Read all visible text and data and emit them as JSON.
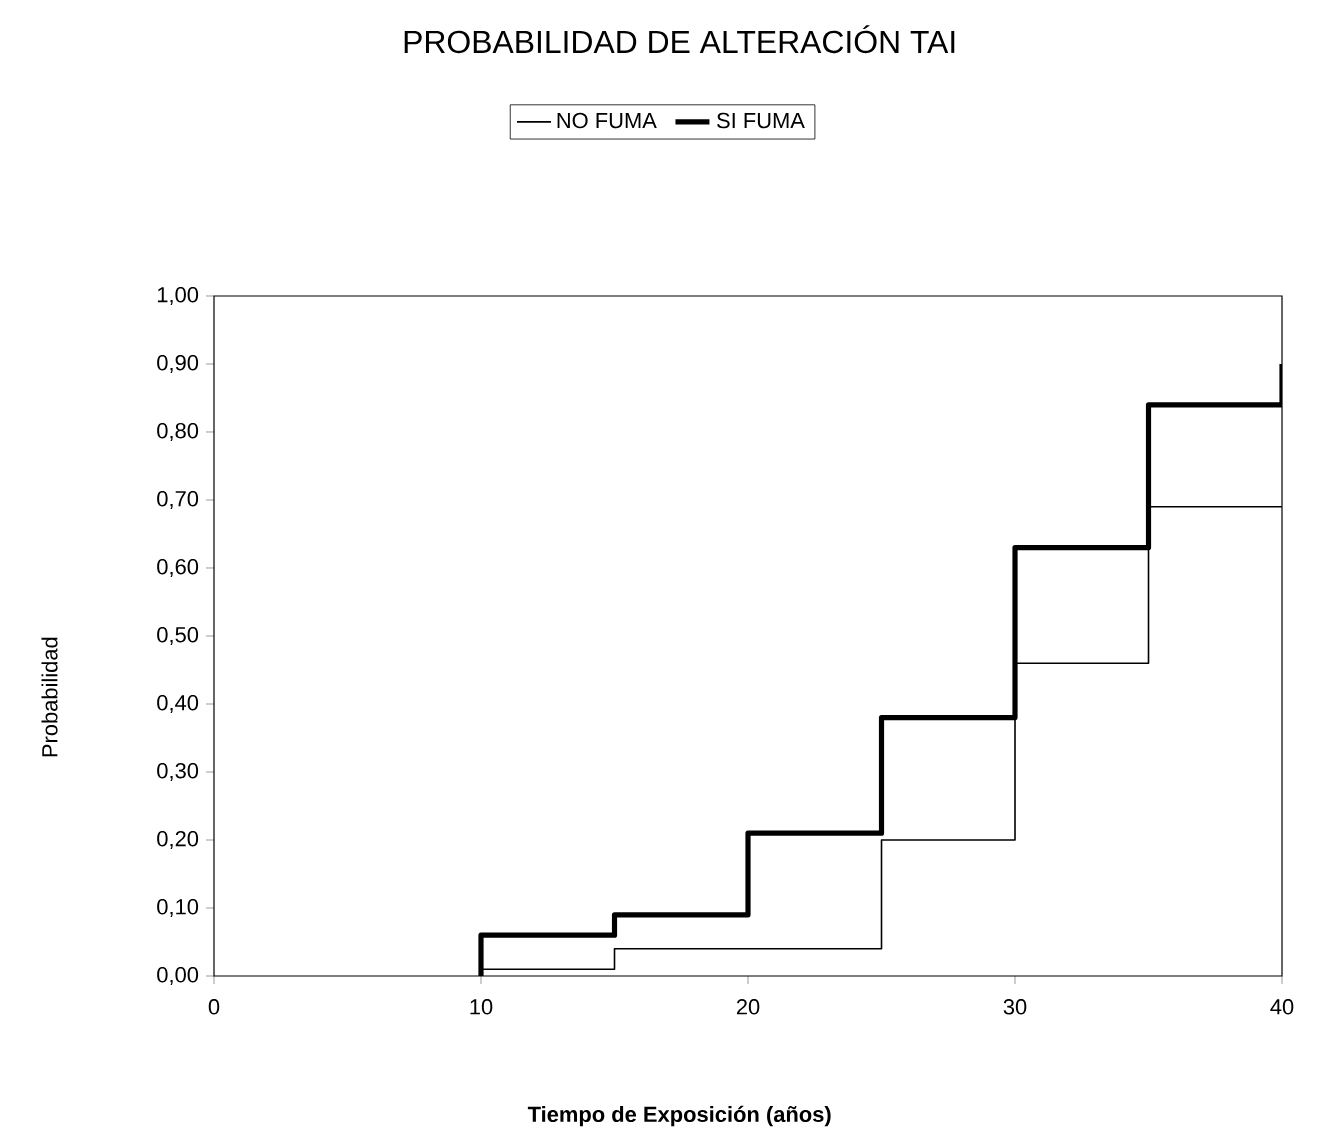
{
  "chart_data": {
    "type": "step",
    "title": "PROBABILIDAD DE ALTERACIÓN TAI",
    "xlabel": "Tiempo de Exposición (años)",
    "ylabel": "Probabilidad",
    "xlim": [
      0,
      40
    ],
    "xticks": [
      0,
      10,
      20,
      30,
      40
    ],
    "ylim": [
      0,
      1
    ],
    "yticks": [
      {
        "value": 0,
        "label": "0,00"
      },
      {
        "value": 0.1,
        "label": "0,10"
      },
      {
        "value": 0.2,
        "label": "0,20"
      },
      {
        "value": 0.3,
        "label": "0,30"
      },
      {
        "value": 0.4,
        "label": "0,40"
      },
      {
        "value": 0.5,
        "label": "0,50"
      },
      {
        "value": 0.6,
        "label": "0,60"
      },
      {
        "value": 0.7,
        "label": "0,70"
      },
      {
        "value": 0.8,
        "label": "0,80"
      },
      {
        "value": 0.9,
        "label": "0,90"
      },
      {
        "value": 1,
        "label": "1,00"
      }
    ],
    "x": [
      10,
      10,
      15,
      20,
      25,
      30,
      35,
      40
    ],
    "series": [
      {
        "name": "NO FUMA",
        "color": "#000000",
        "values": [
          0,
          0.01,
          0.04,
          0.04,
          0.2,
          0.46,
          0.69,
          0.69
        ]
      },
      {
        "name": "SI FUMA",
        "color": "#000000",
        "values": [
          0,
          0.06,
          0.09,
          0.21,
          0.38,
          0.63,
          0.84,
          0.9
        ]
      }
    ],
    "legend": "top",
    "grid": false,
    "marker": "none",
    "line_style": "solid"
  }
}
